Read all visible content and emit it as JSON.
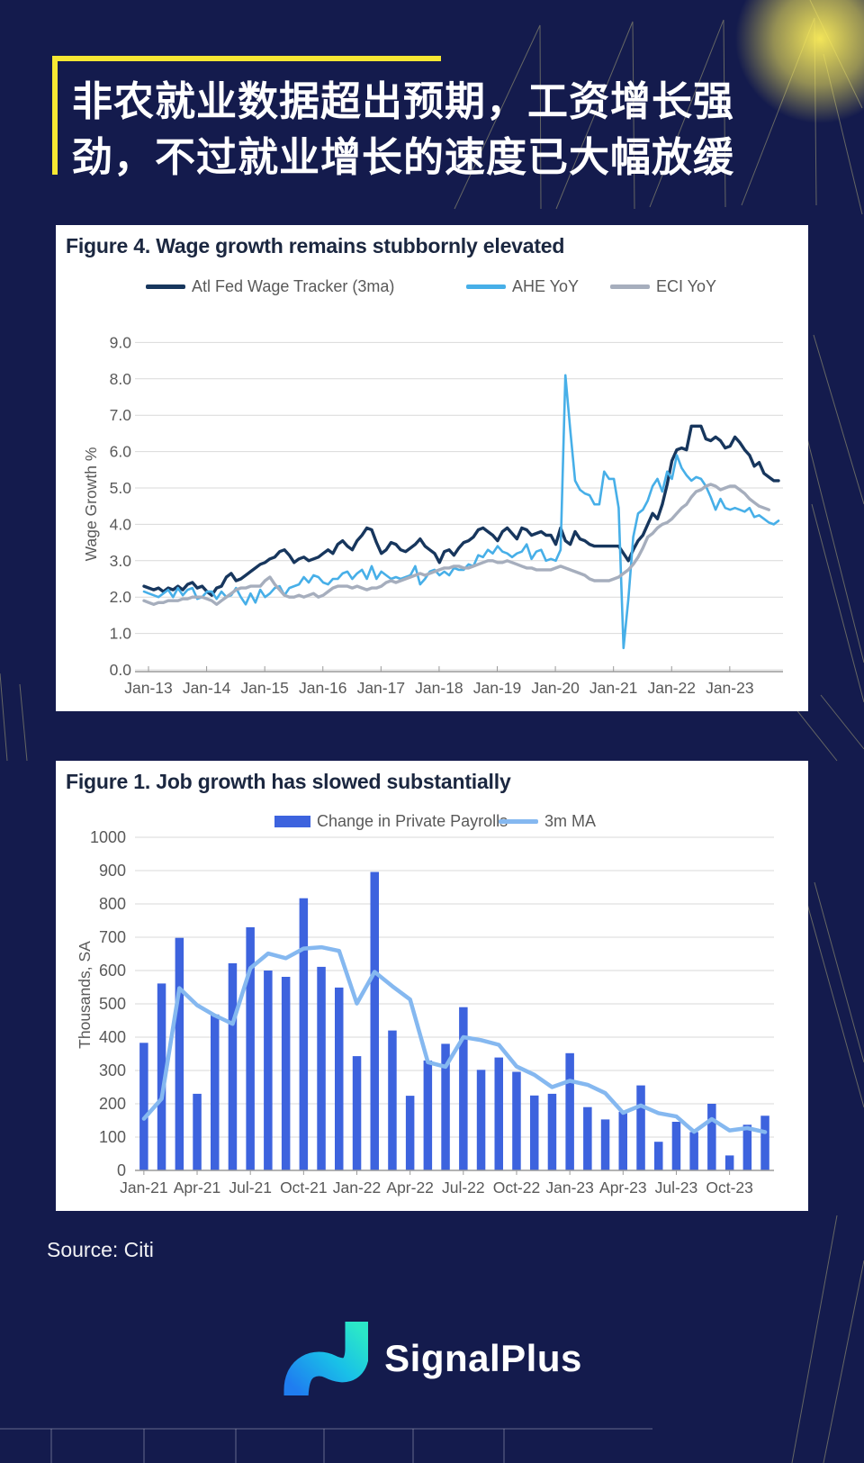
{
  "header": {
    "title_line1": "非农就业数据超出预期，工资增长强",
    "title_line2": "劲，不过就业增长的速度已大幅放缓"
  },
  "footer": {
    "source": "Source: Citi",
    "brand": "SignalPlus"
  },
  "colors": {
    "background": "#141b4d",
    "accent_yellow": "#f7e733",
    "panel": "#ffffff",
    "figure_title": "#1b2740",
    "axis_text": "#595959",
    "gridline": "#d9d9d9",
    "atl_fed_navy": "#17365d",
    "ahe_blue": "#47afe8",
    "eci_gray": "#a6aebd",
    "payrolls_bar_blue": "#3d63de",
    "ma_line_blue": "#85b8f0",
    "logo_teal": "#2be7c8",
    "logo_blue": "#1f7df0"
  },
  "chart_data": [
    {
      "type": "line",
      "title": "Figure 4. Wage growth remains stubbornly elevated",
      "ylabel": "Wage Growth %",
      "ylim": [
        0,
        9
      ],
      "ytick_step": 1.0,
      "yticks": [
        "9.0",
        "8.0",
        "7.0",
        "6.0",
        "5.0",
        "4.0",
        "3.0",
        "2.0",
        "1.0",
        "0.0"
      ],
      "x_frequency": "monthly",
      "x_start": "Jan-13",
      "x_end": "Dec-23",
      "xticks": [
        "Jan-13",
        "Jan-14",
        "Jan-15",
        "Jan-16",
        "Jan-17",
        "Jan-18",
        "Jan-19",
        "Jan-20",
        "Jan-21",
        "Jan-22",
        "Jan-23"
      ],
      "grid": true,
      "legend_position": "top",
      "series": [
        {
          "name": "Atl Fed Wage Tracker (3ma)",
          "color": "#17365d",
          "width": 3.4,
          "values": [
            2.3,
            2.25,
            2.2,
            2.25,
            2.15,
            2.25,
            2.2,
            2.3,
            2.2,
            2.35,
            2.4,
            2.25,
            2.3,
            2.15,
            2.05,
            2.25,
            2.3,
            2.55,
            2.65,
            2.45,
            2.5,
            2.6,
            2.7,
            2.8,
            2.9,
            2.95,
            3.05,
            3.1,
            3.25,
            3.3,
            3.15,
            2.95,
            3.05,
            3.1,
            3.0,
            3.05,
            3.1,
            3.2,
            3.3,
            3.2,
            3.45,
            3.55,
            3.4,
            3.3,
            3.55,
            3.7,
            3.9,
            3.85,
            3.5,
            3.2,
            3.3,
            3.5,
            3.45,
            3.3,
            3.25,
            3.35,
            3.45,
            3.6,
            3.4,
            3.3,
            3.2,
            2.95,
            3.25,
            3.3,
            3.15,
            3.35,
            3.5,
            3.55,
            3.65,
            3.85,
            3.9,
            3.8,
            3.7,
            3.55,
            3.8,
            3.9,
            3.75,
            3.6,
            3.9,
            3.85,
            3.7,
            3.75,
            3.8,
            3.7,
            3.7,
            3.45,
            3.9,
            3.55,
            3.45,
            3.8,
            3.6,
            3.55,
            3.45,
            3.4,
            3.4,
            3.4,
            3.4,
            3.4,
            3.4,
            3.2,
            3.0,
            3.3,
            3.55,
            3.7,
            4.0,
            4.3,
            4.15,
            4.55,
            5.1,
            5.75,
            6.05,
            6.1,
            6.05,
            6.7,
            6.7,
            6.7,
            6.35,
            6.3,
            6.4,
            6.3,
            6.1,
            6.15,
            6.4,
            6.25,
            6.05,
            5.9,
            5.6,
            5.7,
            5.4,
            5.3,
            5.2,
            5.2
          ]
        },
        {
          "name": "AHE YoY",
          "color": "#47afe8",
          "width": 2.6,
          "values": [
            2.15,
            2.1,
            2.05,
            2.0,
            2.1,
            2.2,
            2.0,
            2.25,
            2.05,
            2.2,
            2.25,
            1.95,
            2.0,
            2.15,
            2.15,
            1.95,
            2.15,
            2.0,
            2.05,
            2.25,
            2.0,
            1.8,
            2.1,
            1.85,
            2.2,
            2.0,
            2.1,
            2.25,
            2.3,
            2.05,
            2.25,
            2.3,
            2.35,
            2.55,
            2.4,
            2.6,
            2.55,
            2.4,
            2.35,
            2.5,
            2.5,
            2.65,
            2.7,
            2.5,
            2.65,
            2.75,
            2.5,
            2.85,
            2.5,
            2.7,
            2.6,
            2.5,
            2.55,
            2.5,
            2.55,
            2.6,
            2.85,
            2.35,
            2.5,
            2.7,
            2.75,
            2.6,
            2.7,
            2.6,
            2.8,
            2.75,
            2.75,
            2.9,
            2.85,
            3.15,
            3.1,
            3.3,
            3.2,
            3.4,
            3.25,
            3.2,
            3.1,
            3.2,
            3.25,
            3.45,
            3.05,
            3.25,
            3.3,
            3.0,
            3.05,
            3.0,
            3.3,
            8.1,
            6.6,
            5.2,
            4.95,
            4.85,
            4.8,
            4.55,
            4.55,
            5.45,
            5.25,
            5.25,
            4.45,
            0.6,
            1.95,
            3.65,
            4.3,
            4.4,
            4.65,
            5.05,
            5.25,
            4.9,
            5.45,
            5.25,
            5.9,
            5.55,
            5.35,
            5.2,
            5.3,
            5.25,
            5.05,
            4.75,
            4.4,
            4.7,
            4.45,
            4.4,
            4.45,
            4.4,
            4.35,
            4.45,
            4.2,
            4.25,
            4.15,
            4.05,
            4.0,
            4.1
          ]
        },
        {
          "name": "ECI YoY",
          "color": "#a6aebd",
          "width": 3.4,
          "values": [
            1.9,
            1.85,
            1.8,
            1.85,
            1.85,
            1.9,
            1.9,
            1.9,
            1.95,
            1.95,
            2.0,
            2.0,
            2.0,
            1.95,
            1.9,
            1.8,
            1.9,
            2.0,
            2.1,
            2.2,
            2.25,
            2.25,
            2.3,
            2.3,
            2.3,
            2.45,
            2.55,
            2.35,
            2.2,
            2.05,
            2.0,
            2.0,
            2.05,
            2.0,
            2.05,
            2.1,
            2.0,
            2.05,
            2.15,
            2.25,
            2.3,
            2.3,
            2.3,
            2.25,
            2.3,
            2.25,
            2.2,
            2.25,
            2.25,
            2.3,
            2.4,
            2.45,
            2.4,
            2.45,
            2.5,
            2.55,
            2.6,
            2.65,
            2.6,
            2.65,
            2.7,
            2.75,
            2.8,
            2.8,
            2.85,
            2.85,
            2.8,
            2.8,
            2.85,
            2.9,
            2.95,
            3.0,
            3.0,
            2.95,
            2.95,
            3.0,
            2.95,
            2.9,
            2.85,
            2.8,
            2.8,
            2.75,
            2.75,
            2.75,
            2.75,
            2.8,
            2.85,
            2.8,
            2.75,
            2.7,
            2.65,
            2.6,
            2.5,
            2.45,
            2.45,
            2.45,
            2.45,
            2.5,
            2.55,
            2.65,
            2.75,
            2.9,
            3.1,
            3.35,
            3.65,
            3.75,
            3.9,
            4.0,
            4.05,
            4.15,
            4.3,
            4.45,
            4.55,
            4.75,
            4.9,
            4.95,
            5.05,
            5.1,
            5.05,
            4.95,
            5.0,
            5.05,
            5.05,
            4.95,
            4.85,
            4.7,
            4.6,
            4.5,
            4.45,
            4.4
          ]
        }
      ]
    },
    {
      "type": "bar+line",
      "title": "Figure 1. Job growth has slowed substantially",
      "ylabel": "Thousands, SA",
      "ylim": [
        0,
        1000
      ],
      "ytick_step": 100,
      "yticks": [
        "1000",
        "900",
        "800",
        "700",
        "600",
        "500",
        "400",
        "300",
        "200",
        "100",
        "0"
      ],
      "grid": true,
      "legend_position": "top",
      "categories": [
        "Jan-21",
        "Feb-21",
        "Mar-21",
        "Apr-21",
        "May-21",
        "Jun-21",
        "Jul-21",
        "Aug-21",
        "Sep-21",
        "Oct-21",
        "Nov-21",
        "Dec-21",
        "Jan-22",
        "Feb-22",
        "Mar-22",
        "Apr-22",
        "May-22",
        "Jun-22",
        "Jul-22",
        "Aug-22",
        "Sep-22",
        "Oct-22",
        "Nov-22",
        "Dec-22",
        "Jan-23",
        "Feb-23",
        "Mar-23",
        "Apr-23",
        "May-23",
        "Jun-23",
        "Jul-23",
        "Aug-23",
        "Sep-23",
        "Oct-23",
        "Nov-23",
        "Dec-23"
      ],
      "xticks": [
        "Jan-21",
        "Apr-21",
        "Jul-21",
        "Oct-21",
        "Jan-22",
        "Apr-22",
        "Jul-22",
        "Oct-22",
        "Jan-23",
        "Apr-23",
        "Jul-23",
        "Oct-23"
      ],
      "series": [
        {
          "name": "Change in Private Payrolls",
          "type": "bar",
          "color": "#3d63de",
          "values": [
            383,
            561,
            698,
            230,
            468,
            622,
            730,
            600,
            581,
            817,
            611,
            549,
            343,
            896,
            420,
            224,
            330,
            380,
            490,
            302,
            339,
            296,
            225,
            230,
            352,
            190,
            153,
            176,
            255,
            86,
            146,
            115,
            200,
            45,
            137,
            164
          ]
        },
        {
          "name": "3m MA",
          "type": "line",
          "color": "#85b8f0",
          "width": 4.5,
          "values": [
            155,
            215,
            547,
            496,
            465,
            440,
            607,
            651,
            637,
            666,
            670,
            659,
            501,
            596,
            553,
            513,
            325,
            311,
            400,
            391,
            377,
            312,
            287,
            250,
            269,
            257,
            232,
            173,
            195,
            172,
            162,
            116,
            154,
            120,
            127,
            115
          ]
        }
      ]
    }
  ]
}
